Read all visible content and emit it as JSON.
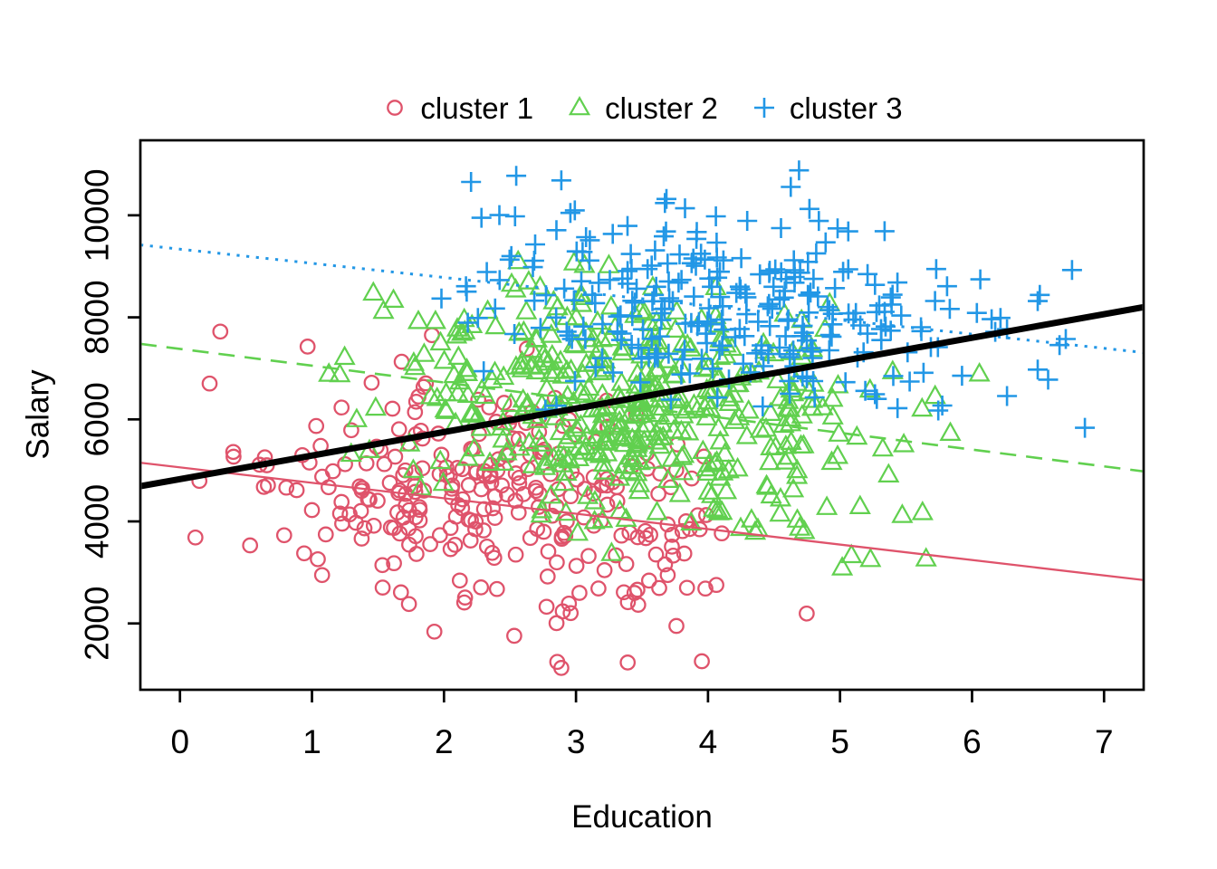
{
  "figure": {
    "background": "#ffffff",
    "legend": {
      "position": "top-center",
      "items": [
        {
          "label": "cluster 1",
          "marker": "open-circle",
          "color": "#DF536B"
        },
        {
          "label": "cluster 2",
          "marker": "open-triangle",
          "color": "#61D04F"
        },
        {
          "label": "cluster 3",
          "marker": "plus",
          "color": "#2297E6"
        }
      ]
    }
  },
  "chart_data": {
    "type": "scatter",
    "title": "",
    "xlabel": "Education",
    "ylabel": "Salary",
    "xlim": [
      -0.3,
      7.3
    ],
    "ylim": [
      700,
      11470
    ],
    "xticks": [
      0,
      1,
      2,
      3,
      4,
      5,
      6,
      7
    ],
    "yticks": [
      2000,
      4000,
      6000,
      8000,
      10000
    ],
    "grid": false,
    "frame": true,
    "text_color": "#000000",
    "legend_position": "top-center",
    "series": [
      {
        "name": "cluster 1",
        "marker": "open-circle",
        "color": "#DF536B",
        "n": 285,
        "distribution": "bivariate-normal",
        "x_mean": 2.35,
        "x_sd": 0.95,
        "y_mean": 4200,
        "y_sd": 1200,
        "xy_corr": -0.25,
        "x_range": [
          0.0,
          4.9
        ],
        "y_range": [
          1040,
          7800
        ],
        "seed": 7
      },
      {
        "name": "cluster 2",
        "marker": "open-triangle",
        "color": "#61D04F",
        "n": 445,
        "distribution": "bivariate-normal",
        "x_mean": 3.45,
        "x_sd": 1.0,
        "y_mean": 6300,
        "y_sd": 1150,
        "xy_corr": -0.3,
        "x_range": [
          1.05,
          6.25
        ],
        "y_range": [
          2950,
          9910
        ],
        "seed": 13
      },
      {
        "name": "cluster 3",
        "marker": "plus",
        "color": "#2297E6",
        "n": 285,
        "distribution": "bivariate-normal",
        "x_mean": 4.25,
        "x_sd": 0.95,
        "y_mean": 8250,
        "y_sd": 1000,
        "xy_corr": -0.26,
        "x_range": [
          1.9,
          7.0
        ],
        "y_range": [
          5700,
          11200
        ],
        "seed": 29
      }
    ],
    "fit_lines": [
      {
        "name": "cluster-1-fit",
        "color": "#DF536B",
        "style": "solid",
        "width": 2.3,
        "x": [
          -0.3,
          7.3
        ],
        "y": [
          5150,
          2850
        ]
      },
      {
        "name": "cluster-2-fit",
        "color": "#61D04F",
        "style": "dashed",
        "width": 2.6,
        "x": [
          -0.3,
          7.3
        ],
        "y": [
          7480,
          4980
        ]
      },
      {
        "name": "cluster-3-fit",
        "color": "#2297E6",
        "style": "dotted",
        "width": 3.0,
        "x": [
          -0.3,
          7.3
        ],
        "y": [
          9420,
          7310
        ]
      },
      {
        "name": "overall-fit",
        "color": "#000000",
        "style": "solid",
        "width": 7.0,
        "x": [
          -0.3,
          7.3
        ],
        "y": [
          4690,
          8200
        ]
      }
    ]
  }
}
